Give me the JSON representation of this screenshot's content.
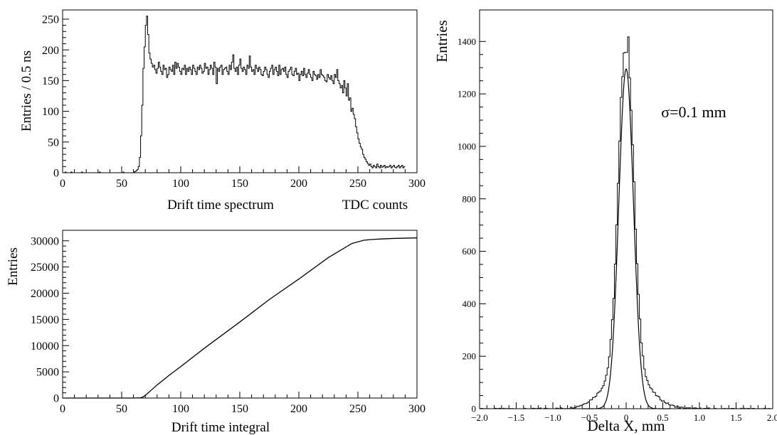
{
  "chart_data": [
    {
      "id": "top-left",
      "type": "histogram",
      "xlabel": "Drift time spectrum",
      "xunit_label": "TDC counts",
      "ylabel": "Entries / 0.5 ns",
      "xlim": [
        0,
        300
      ],
      "ylim": [
        0,
        265
      ],
      "xticks": [
        0,
        50,
        100,
        150,
        200,
        250,
        300
      ],
      "yticks": [
        0,
        50,
        100,
        150,
        200,
        250
      ],
      "bin_width": 1,
      "series": [
        {
          "x0": 0,
          "values": [
            0,
            0,
            1,
            0,
            0,
            0,
            0,
            1,
            0,
            0,
            0,
            0,
            0,
            0,
            0,
            0,
            1,
            0,
            0,
            0,
            0,
            0,
            0,
            0,
            0,
            0,
            0,
            0,
            0,
            0,
            0,
            1,
            0,
            0,
            0,
            0,
            0,
            0,
            0,
            0,
            0,
            0,
            0,
            0,
            0,
            0,
            0,
            0,
            0,
            0,
            0,
            1,
            0,
            0,
            0,
            0,
            0,
            0,
            0,
            0,
            1,
            2,
            3,
            5,
            10,
            25,
            60,
            110,
            170,
            205,
            240,
            255,
            225,
            195,
            185,
            178,
            172,
            175,
            168,
            162,
            170,
            180,
            172,
            165,
            160,
            175,
            168,
            170,
            155,
            160,
            172,
            168,
            165,
            175,
            160,
            180,
            170,
            178,
            172,
            165,
            160,
            170,
            168,
            175,
            160,
            170,
            165,
            172,
            168,
            160,
            175,
            170,
            165,
            160,
            172,
            168,
            175,
            170,
            162,
            165,
            178,
            170,
            172,
            160,
            168,
            175,
            170,
            160,
            180,
            172,
            145,
            170,
            165,
            172,
            175,
            160,
            168,
            170,
            172,
            165,
            160,
            175,
            168,
            180,
            192,
            170,
            165,
            172,
            160,
            175,
            185,
            170,
            165,
            172,
            168,
            160,
            175,
            170,
            190,
            172,
            165,
            168,
            160,
            175,
            170,
            165,
            172,
            168,
            160,
            158,
            165,
            172,
            168,
            160,
            155,
            165,
            170,
            175,
            160,
            168,
            172,
            165,
            158,
            175,
            160,
            168,
            170,
            165,
            172,
            160,
            155,
            165,
            168,
            172,
            160,
            158,
            165,
            170,
            160,
            162,
            150,
            160,
            165,
            158,
            170,
            160,
            155,
            162,
            168,
            160,
            155,
            150,
            165,
            160,
            158,
            152,
            160,
            155,
            168,
            160,
            158,
            155,
            150,
            148,
            160,
            155,
            152,
            158,
            150,
            145,
            160,
            155,
            168,
            150,
            145,
            138,
            142,
            130,
            150,
            138,
            125,
            145,
            118,
            122,
            100,
            105,
            95,
            88,
            75,
            65,
            55,
            48,
            42,
            38,
            30,
            25,
            22,
            18,
            15,
            12,
            14,
            10,
            8,
            12,
            10,
            8,
            14,
            10,
            8,
            12,
            9,
            10,
            12,
            8,
            10,
            9,
            10,
            12,
            8,
            10,
            12,
            9,
            8,
            10,
            12,
            8,
            10,
            12,
            8,
            10
          ]
        }
      ]
    },
    {
      "id": "bottom-left",
      "type": "line",
      "xlabel": "Drift time integral",
      "ylabel": "Entries",
      "xlim": [
        0,
        300
      ],
      "ylim": [
        0,
        32000
      ],
      "xticks": [
        0,
        50,
        100,
        150,
        200,
        250,
        300
      ],
      "yticks": [
        0,
        5000,
        10000,
        15000,
        20000,
        25000,
        30000
      ],
      "series": [
        {
          "x": [
            0,
            60,
            66,
            68,
            70,
            72,
            75,
            80,
            90,
            100,
            120,
            150,
            175,
            200,
            225,
            245,
            255,
            262,
            270,
            280,
            300
          ],
          "y": [
            0,
            0,
            50,
            200,
            500,
            900,
            1500,
            2500,
            4300,
            6000,
            9500,
            14500,
            18800,
            22700,
            26800,
            29500,
            30100,
            30250,
            30350,
            30450,
            30550
          ]
        }
      ]
    },
    {
      "id": "right",
      "type": "histogram",
      "xlabel": "Delta X, mm",
      "ylabel": "Entries",
      "annotation": "σ=0.1 mm",
      "xlim": [
        -2.0,
        2.0
      ],
      "ylim": [
        0,
        1520
      ],
      "xticks": [
        -2.0,
        -1.5,
        -1.0,
        -0.5,
        0,
        0.5,
        1.0,
        1.5,
        2.0
      ],
      "xtick_labels": [
        "−2.0",
        "−1.5",
        "−1.0",
        "−0.5",
        "0",
        "0.5",
        "1.0",
        "1.5",
        "2.0"
      ],
      "yticks": [
        0,
        200,
        400,
        600,
        800,
        1000,
        1200,
        1400
      ],
      "fit": {
        "mean": 0,
        "sigma": 0.1,
        "amplitude": 1295
      },
      "series": [
        {
          "bin_width": 0.02,
          "tail_amplitude": 150,
          "tail_sigma": 0.28
        }
      ]
    }
  ]
}
